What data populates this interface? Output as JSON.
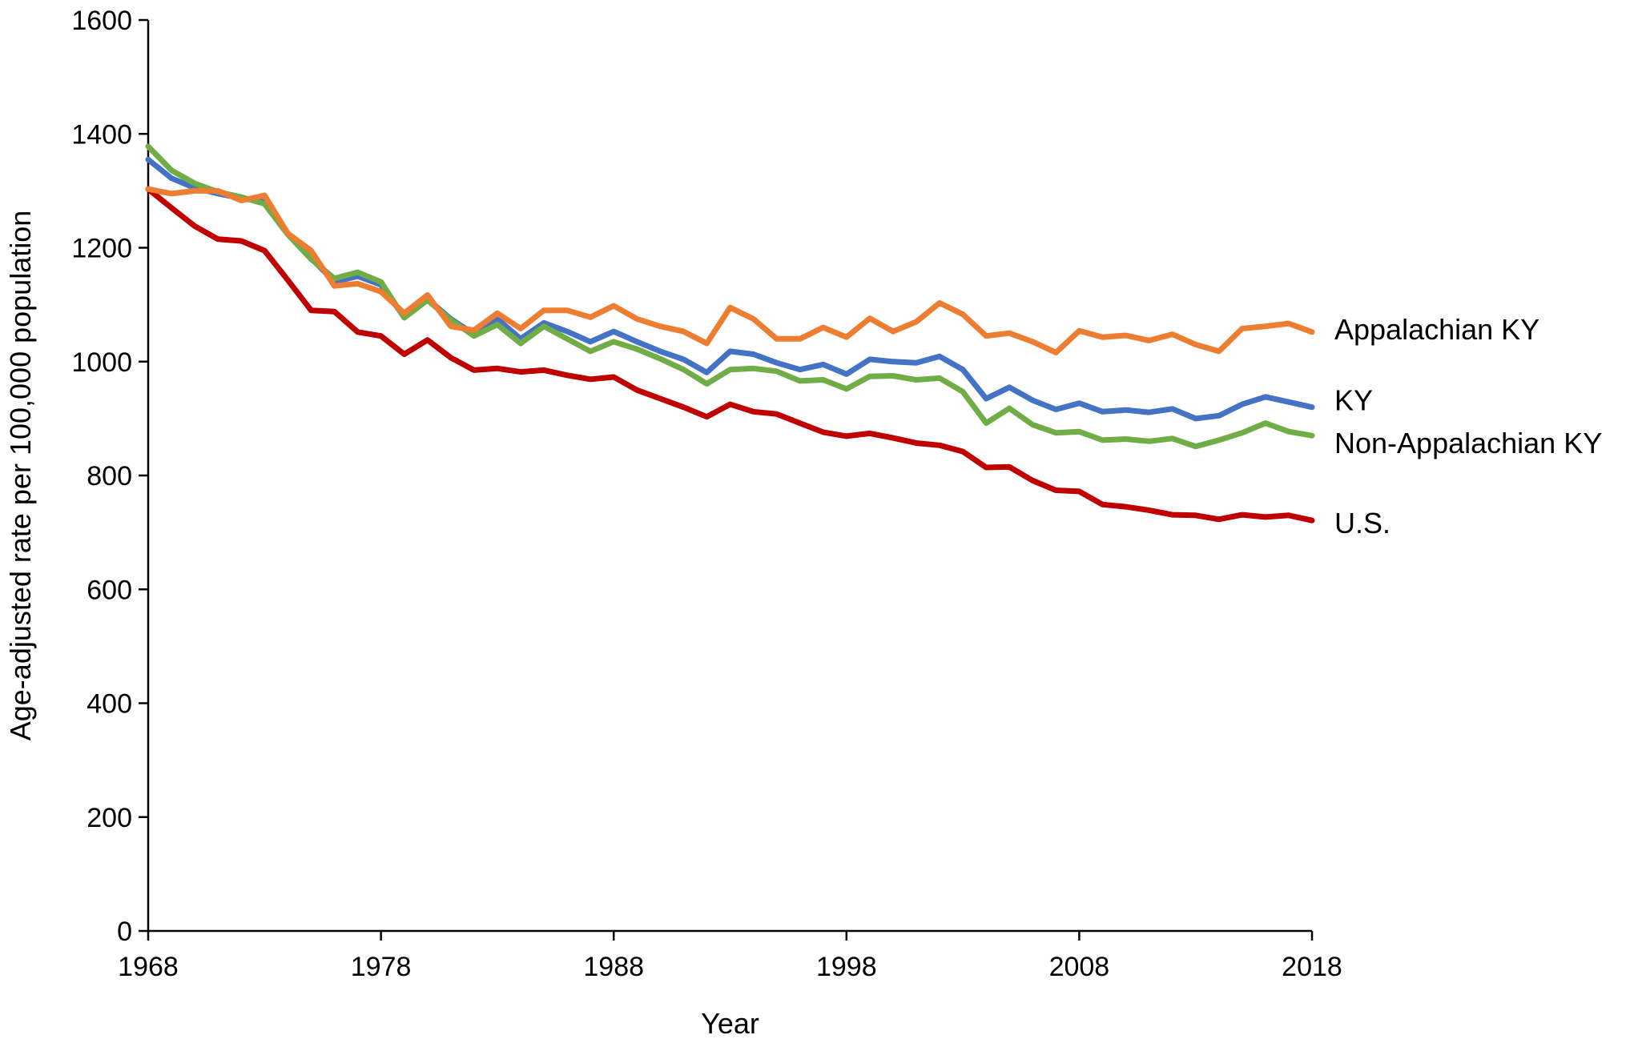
{
  "chart_data": {
    "type": "line",
    "title": "",
    "xlabel": "Year",
    "ylabel": "Age-adjusted rate per 100,000 population",
    "xlim": [
      1968,
      2018
    ],
    "ylim": [
      0,
      1600
    ],
    "xticks": [
      1968,
      1978,
      1988,
      1998,
      2008,
      2018
    ],
    "yticks": [
      0,
      200,
      400,
      600,
      800,
      1000,
      1200,
      1400,
      1600
    ],
    "grid": false,
    "legend": "direct labels at right end of lines",
    "x": [
      1968,
      1969,
      1970,
      1971,
      1972,
      1973,
      1974,
      1975,
      1976,
      1977,
      1978,
      1979,
      1980,
      1981,
      1982,
      1983,
      1984,
      1985,
      1986,
      1987,
      1988,
      1989,
      1990,
      1991,
      1992,
      1993,
      1994,
      1995,
      1996,
      1997,
      1998,
      1999,
      2000,
      2001,
      2002,
      2003,
      2004,
      2005,
      2006,
      2007,
      2008,
      2009,
      2010,
      2011,
      2012,
      2013,
      2014,
      2015,
      2016,
      2017,
      2018
    ],
    "series": [
      {
        "name": "U.S.",
        "color": "#c00000",
        "values": [
          1303,
          1270,
          1238,
          1215,
          1212,
          1195,
          1143,
          1090,
          1088,
          1052,
          1045,
          1013,
          1038,
          1007,
          985,
          988,
          982,
          985,
          976,
          969,
          973,
          950,
          935,
          920,
          903,
          925,
          912,
          908,
          892,
          876,
          869,
          874,
          866,
          857,
          853,
          842,
          814,
          815,
          791,
          774,
          772,
          749,
          745,
          739,
          731,
          730,
          723,
          731,
          727,
          730,
          721
        ]
      },
      {
        "name": "KY",
        "color": "#4472c4",
        "values": [
          1355,
          1322,
          1305,
          1295,
          1287,
          1280,
          1225,
          1182,
          1140,
          1150,
          1135,
          1078,
          1110,
          1075,
          1048,
          1075,
          1040,
          1068,
          1053,
          1035,
          1053,
          1035,
          1018,
          1004,
          981,
          1018,
          1013,
          998,
          986,
          995,
          978,
          1004,
          1000,
          998,
          1009,
          986,
          935,
          955,
          932,
          916,
          927,
          912,
          915,
          911,
          917,
          900,
          905,
          925,
          938,
          929,
          920
        ]
      },
      {
        "name": "Non-Appalachian KY",
        "color": "#70ad47",
        "values": [
          1378,
          1336,
          1313,
          1298,
          1289,
          1277,
          1223,
          1180,
          1146,
          1157,
          1140,
          1077,
          1108,
          1073,
          1045,
          1065,
          1032,
          1062,
          1040,
          1018,
          1035,
          1022,
          1005,
          986,
          961,
          986,
          988,
          983,
          966,
          968,
          952,
          974,
          975,
          968,
          971,
          947,
          892,
          918,
          889,
          875,
          877,
          862,
          864,
          860,
          865,
          851,
          862,
          875,
          892,
          877,
          870
        ]
      },
      {
        "name": "Appalachian KY",
        "color": "#ed7d31",
        "values": [
          1303,
          1295,
          1300,
          1300,
          1283,
          1292,
          1225,
          1195,
          1133,
          1137,
          1123,
          1085,
          1117,
          1062,
          1055,
          1085,
          1058,
          1090,
          1090,
          1078,
          1098,
          1075,
          1062,
          1053,
          1032,
          1095,
          1075,
          1040,
          1040,
          1060,
          1043,
          1076,
          1053,
          1070,
          1103,
          1083,
          1045,
          1050,
          1035,
          1016,
          1054,
          1043,
          1046,
          1037,
          1048,
          1030,
          1018,
          1058,
          1062,
          1067,
          1052
        ]
      }
    ]
  }
}
